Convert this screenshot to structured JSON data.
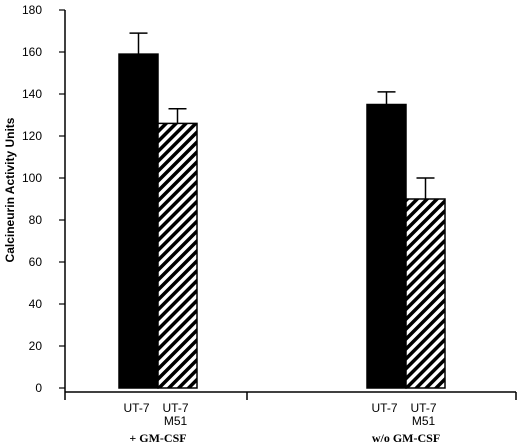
{
  "chart_data": {
    "type": "bar",
    "title": "",
    "ylabel": "Calcineurin Activity Units",
    "xlabel": "",
    "ylim": [
      0,
      180
    ],
    "yticks": [
      0,
      20,
      40,
      60,
      80,
      100,
      120,
      140,
      160,
      180
    ],
    "groups": [
      {
        "label": "+ GM-CSF",
        "bars": [
          {
            "label": [
              "UT-7"
            ],
            "value": 159,
            "error": 10,
            "fill": "solid"
          },
          {
            "label": [
              "UT-7",
              "M51"
            ],
            "value": 126,
            "error": 7,
            "fill": "hatched"
          }
        ]
      },
      {
        "label": "w/o GM-CSF",
        "bars": [
          {
            "label": [
              "UT-7"
            ],
            "value": 135,
            "error": 6,
            "fill": "solid"
          },
          {
            "label": [
              "UT-7",
              "M51"
            ],
            "value": 90,
            "error": 10,
            "fill": "hatched"
          }
        ]
      }
    ],
    "colors": {
      "solid": "#000000",
      "hatched_stroke": "#000000",
      "background": "#ffffff"
    },
    "grid": false,
    "legend": "none"
  }
}
